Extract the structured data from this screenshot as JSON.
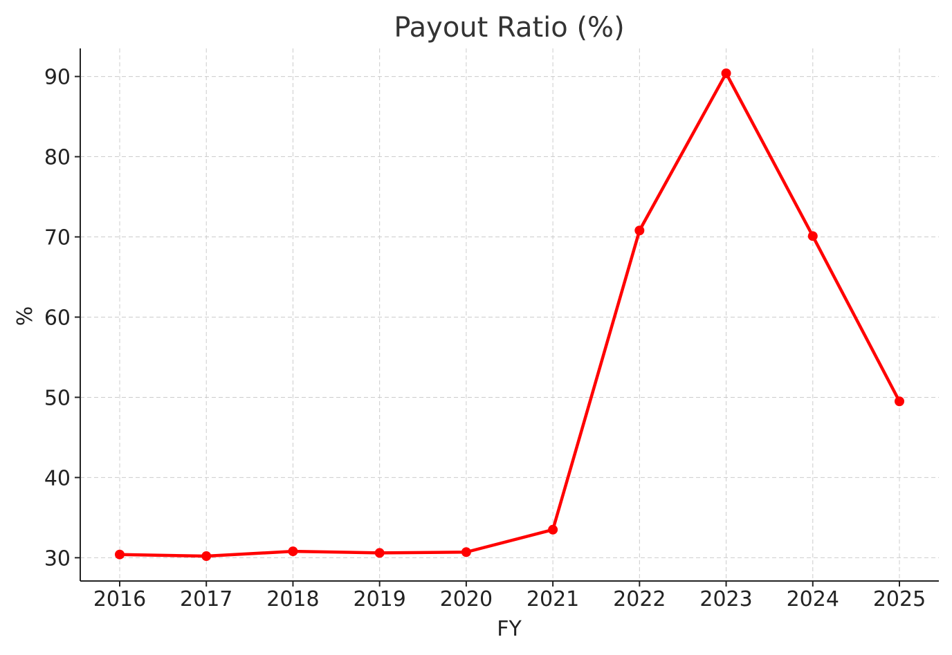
{
  "chart_data": {
    "type": "line",
    "title": "Payout Ratio (%)",
    "xlabel": "FY",
    "ylabel": "%",
    "categories": [
      "2016",
      "2017",
      "2018",
      "2019",
      "2020",
      "2021",
      "2022",
      "2023",
      "2024",
      "2025"
    ],
    "series": [
      {
        "values": [
          30.4,
          30.2,
          30.8,
          30.6,
          30.7,
          33.5,
          70.8,
          90.4,
          70.1,
          49.5
        ],
        "color": "#ff0000",
        "marker": "circle"
      }
    ],
    "yticks": [
      30,
      40,
      50,
      60,
      70,
      80,
      90
    ],
    "ylim": [
      27.1,
      93.5
    ],
    "grid": true,
    "legend": "none"
  }
}
